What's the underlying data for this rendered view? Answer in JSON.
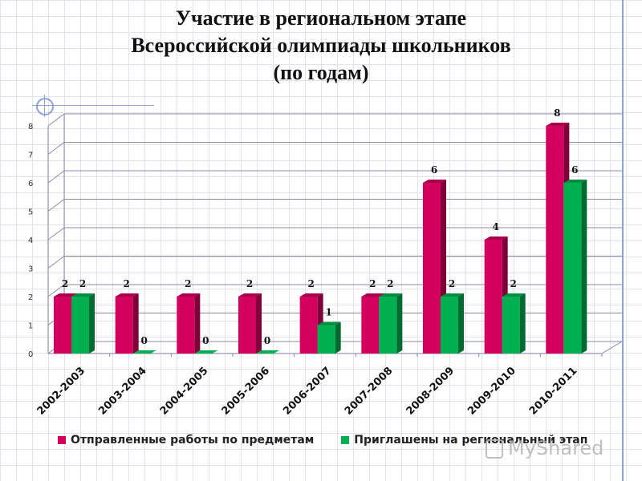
{
  "title": {
    "line1": "Участие в региональном этапе",
    "line2": "Всероссийской олимпиады школьников",
    "line3": "(по годам)"
  },
  "colors": {
    "series1": "#d4005f",
    "series2": "#00b050"
  },
  "chart_data": {
    "type": "bar",
    "categories": [
      "2002-2003",
      "2003-2004",
      "2004-2005",
      "2005-2006",
      "2006-2007",
      "2007-2008",
      "2008-2009",
      "2009-2010",
      "2010-2011"
    ],
    "series": [
      {
        "name": "Отправленные работы по предметам",
        "values": [
          2,
          2,
          2,
          2,
          2,
          2,
          6,
          4,
          8
        ]
      },
      {
        "name": "Приглашены на региональный этап",
        "values": [
          2,
          0,
          0,
          0,
          1,
          2,
          2,
          2,
          6
        ]
      }
    ],
    "ylim": [
      0,
      8
    ],
    "yticks": [
      0,
      1,
      2,
      3,
      4,
      5,
      6,
      7,
      8
    ],
    "grid": true,
    "legend_position": "bottom"
  },
  "watermark": {
    "text": "MyShared"
  }
}
